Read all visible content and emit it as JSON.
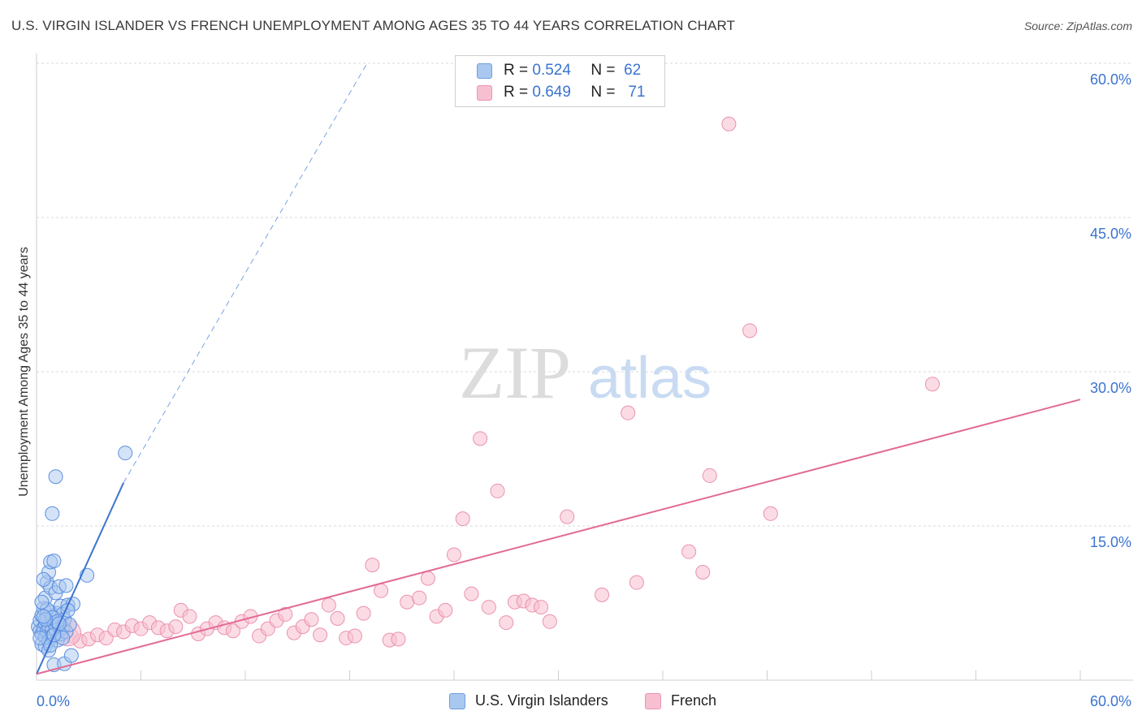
{
  "title": "U.S. VIRGIN ISLANDER VS FRENCH UNEMPLOYMENT AMONG AGES 35 TO 44 YEARS CORRELATION CHART",
  "source": "Source: ZipAtlas.com",
  "watermark": {
    "zip": "ZIP",
    "atlas": "atlas"
  },
  "legend": {
    "rows": [
      {
        "r_label": "R =",
        "r_value": "0.524",
        "n_label": "N =",
        "n_value": "62"
      },
      {
        "r_label": "R =",
        "r_value": "0.649",
        "n_label": "N =",
        "n_value": "71"
      }
    ]
  },
  "bottom_legend": [
    "U.S. Virgin Islanders",
    "French"
  ],
  "colors": {
    "blue": "#3b74d0",
    "blue_fill": "#a9c8f0",
    "pink": "#e26a95",
    "pink_fill": "#f7c0d0",
    "grid": "#d9d9d9",
    "tick_label": "#3b74d0"
  },
  "chart_data": {
    "type": "scatter",
    "title": "U.S. VIRGIN ISLANDER VS FRENCH UNEMPLOYMENT AMONG AGES 35 TO 44 YEARS CORRELATION CHART",
    "xlabel": "",
    "ylabel": "Unemployment Among Ages 35 to 44 years",
    "xlim": [
      0,
      60
    ],
    "ylim": [
      0,
      60
    ],
    "x_tick_labels": [
      "0.0%",
      "60.0%"
    ],
    "y_ticks": [
      15,
      30,
      45,
      60
    ],
    "y_tick_labels": [
      "15.0%",
      "30.0%",
      "45.0%",
      "60.0%"
    ],
    "series": [
      {
        "name": "U.S. Virgin Islanders",
        "R": 0.524,
        "N": 62,
        "trend": {
          "x0": 0,
          "y0": 0.6,
          "x1": 5.0,
          "y1": 19.2,
          "dashed_to": [
            19.0,
            60
          ]
        },
        "points": [
          [
            0.1,
            5.2
          ],
          [
            0.2,
            4.8
          ],
          [
            0.2,
            5.8
          ],
          [
            0.3,
            4.5
          ],
          [
            0.3,
            6.3
          ],
          [
            0.3,
            3.5
          ],
          [
            0.4,
            5.0
          ],
          [
            0.4,
            7.0
          ],
          [
            0.5,
            4.2
          ],
          [
            0.5,
            5.5
          ],
          [
            0.5,
            8.0
          ],
          [
            0.5,
            3.3
          ],
          [
            0.6,
            6.0
          ],
          [
            0.6,
            9.5
          ],
          [
            0.6,
            4.8
          ],
          [
            0.7,
            5.3
          ],
          [
            0.7,
            10.5
          ],
          [
            0.7,
            3.8
          ],
          [
            0.8,
            11.5
          ],
          [
            0.8,
            6.6
          ],
          [
            0.8,
            9.0
          ],
          [
            0.9,
            16.2
          ],
          [
            0.9,
            5.0
          ],
          [
            0.9,
            4.3
          ],
          [
            1.0,
            11.6
          ],
          [
            1.0,
            5.6
          ],
          [
            1.0,
            1.5
          ],
          [
            1.1,
            19.8
          ],
          [
            1.1,
            8.5
          ],
          [
            1.1,
            4.9
          ],
          [
            1.2,
            6.5
          ],
          [
            1.2,
            3.9
          ],
          [
            1.3,
            5.2
          ],
          [
            1.3,
            9.1
          ],
          [
            1.4,
            4.5
          ],
          [
            1.4,
            7.2
          ],
          [
            1.5,
            5.1
          ],
          [
            1.5,
            6.4
          ],
          [
            1.6,
            1.6
          ],
          [
            1.6,
            5.9
          ],
          [
            1.7,
            9.2
          ],
          [
            1.7,
            4.7
          ],
          [
            1.8,
            7.3
          ],
          [
            1.9,
            5.4
          ],
          [
            2.0,
            2.4
          ],
          [
            2.1,
            7.4
          ],
          [
            1.8,
            6.8
          ],
          [
            2.9,
            10.2
          ],
          [
            5.1,
            22.1
          ],
          [
            0.4,
            9.8
          ],
          [
            0.6,
            6.9
          ],
          [
            0.2,
            4.1
          ],
          [
            0.9,
            6.1
          ],
          [
            1.2,
            5.7
          ],
          [
            0.3,
            7.6
          ],
          [
            0.7,
            2.9
          ],
          [
            1.5,
            4.1
          ],
          [
            0.5,
            5.9
          ],
          [
            0.8,
            3.4
          ],
          [
            1.0,
            4.4
          ],
          [
            0.4,
            6.2
          ],
          [
            1.3,
            5.5
          ]
        ]
      },
      {
        "name": "French",
        "R": 0.649,
        "N": 71,
        "trend": {
          "x0": 0,
          "y0": 0.6,
          "x1": 60,
          "y1": 27.3
        },
        "points": [
          [
            0.5,
            5.5
          ],
          [
            1.0,
            5.0
          ],
          [
            1.3,
            4.6
          ],
          [
            1.6,
            5.2
          ],
          [
            2.0,
            4.3
          ],
          [
            2.5,
            3.8
          ],
          [
            3.0,
            4.0
          ],
          [
            3.5,
            4.4
          ],
          [
            4.0,
            4.1
          ],
          [
            4.5,
            4.9
          ],
          [
            5.0,
            4.7
          ],
          [
            5.5,
            5.3
          ],
          [
            6.0,
            5.0
          ],
          [
            6.5,
            5.6
          ],
          [
            7.0,
            5.1
          ],
          [
            7.5,
            4.8
          ],
          [
            8.0,
            5.2
          ],
          [
            8.3,
            6.8
          ],
          [
            8.8,
            6.2
          ],
          [
            9.3,
            4.5
          ],
          [
            9.8,
            5.0
          ],
          [
            10.3,
            5.6
          ],
          [
            10.8,
            5.1
          ],
          [
            11.3,
            4.8
          ],
          [
            11.8,
            5.7
          ],
          [
            12.3,
            6.2
          ],
          [
            12.8,
            4.3
          ],
          [
            13.3,
            5.0
          ],
          [
            13.8,
            5.8
          ],
          [
            14.3,
            6.4
          ],
          [
            14.8,
            4.6
          ],
          [
            15.3,
            5.2
          ],
          [
            15.8,
            5.9
          ],
          [
            16.3,
            4.4
          ],
          [
            16.8,
            7.3
          ],
          [
            17.3,
            6.0
          ],
          [
            17.8,
            4.1
          ],
          [
            18.3,
            4.3
          ],
          [
            18.8,
            6.5
          ],
          [
            19.3,
            11.2
          ],
          [
            19.8,
            8.7
          ],
          [
            20.3,
            3.9
          ],
          [
            20.8,
            4.0
          ],
          [
            21.3,
            7.6
          ],
          [
            22.0,
            8.0
          ],
          [
            22.5,
            9.9
          ],
          [
            23.0,
            6.2
          ],
          [
            23.5,
            6.8
          ],
          [
            24.0,
            12.2
          ],
          [
            24.5,
            15.7
          ],
          [
            25.0,
            8.4
          ],
          [
            25.5,
            23.5
          ],
          [
            26.0,
            7.1
          ],
          [
            26.5,
            18.4
          ],
          [
            27.0,
            5.6
          ],
          [
            27.5,
            7.6
          ],
          [
            28.0,
            7.7
          ],
          [
            28.5,
            7.3
          ],
          [
            29.0,
            7.1
          ],
          [
            29.5,
            5.7
          ],
          [
            30.5,
            15.9
          ],
          [
            32.5,
            8.3
          ],
          [
            34.0,
            26.0
          ],
          [
            34.5,
            9.5
          ],
          [
            37.5,
            12.5
          ],
          [
            38.3,
            10.5
          ],
          [
            38.7,
            19.9
          ],
          [
            39.8,
            54.1
          ],
          [
            41.0,
            34.0
          ],
          [
            42.2,
            16.2
          ],
          [
            51.5,
            28.8
          ]
        ]
      }
    ]
  }
}
